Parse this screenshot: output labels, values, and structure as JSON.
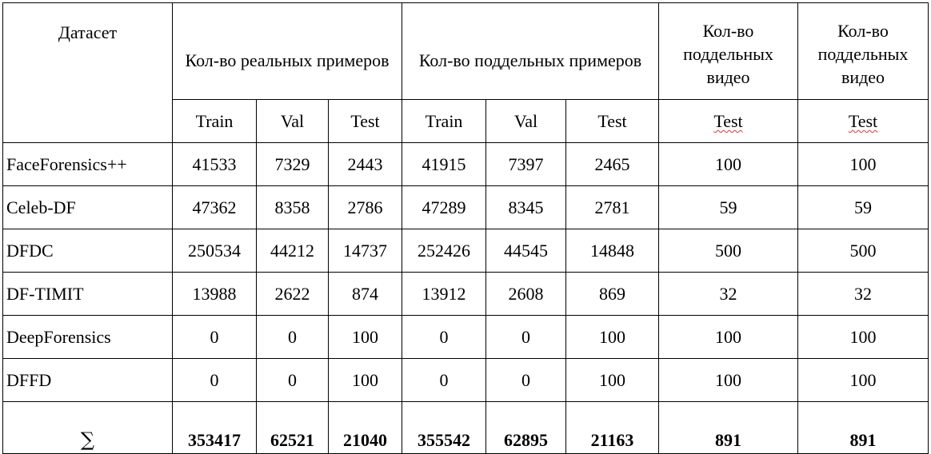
{
  "table": {
    "header": {
      "dataset": "Датасет",
      "real_examples": "Кол-во реальных примеров",
      "fake_examples": "Кол-во поддельных примеров",
      "fake_video_1": "Кол-во поддельных видео",
      "fake_video_2": "Кол-во поддельных видео"
    },
    "subheader": [
      "Train",
      "Val",
      "Test",
      "Train",
      "Val",
      "Test",
      "Test",
      "Test"
    ],
    "rows": [
      {
        "name": "FaceForensics++",
        "values": [
          "41533",
          "7329",
          "2443",
          "41915",
          "7397",
          "2465",
          "100",
          "100"
        ]
      },
      {
        "name": "Celeb-DF",
        "values": [
          "47362",
          "8358",
          "2786",
          "47289",
          "8345",
          "2781",
          "59",
          "59"
        ]
      },
      {
        "name": "DFDC",
        "values": [
          "250534",
          "44212",
          "14737",
          "252426",
          "44545",
          "14848",
          "500",
          "500"
        ]
      },
      {
        "name": "DF-TIMIT",
        "values": [
          "13988",
          "2622",
          "874",
          "13912",
          "2608",
          "869",
          "32",
          "32"
        ]
      },
      {
        "name": "DeepForensics",
        "values": [
          "0",
          "0",
          "100",
          "0",
          "0",
          "100",
          "100",
          "100"
        ]
      },
      {
        "name": "DFFD",
        "values": [
          "0",
          "0",
          "100",
          "0",
          "0",
          "100",
          "100",
          "100"
        ]
      }
    ],
    "totals": {
      "symbol": "∑",
      "values": [
        "353417",
        "62521",
        "21040",
        "355542",
        "62895",
        "21163",
        "891",
        "891"
      ]
    }
  }
}
